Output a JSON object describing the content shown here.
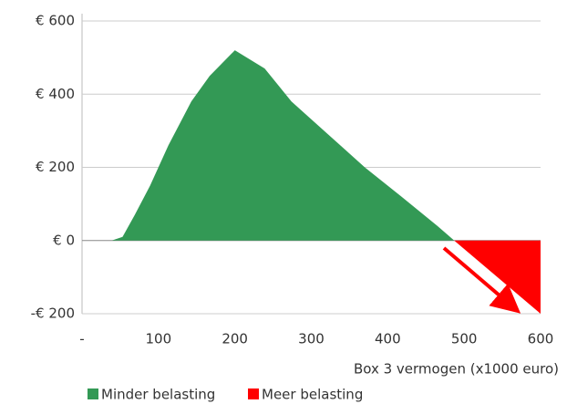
{
  "chart_data": {
    "type": "area",
    "xlabel": "Box 3 vermogen (x1000 euro)",
    "series": [
      {
        "name": "Minder belasting",
        "color": "#339955",
        "x": [
          39,
          53,
          69,
          89,
          113,
          143,
          167,
          200,
          239,
          274,
          322,
          370,
          418,
          465,
          487
        ],
        "values": [
          0,
          10,
          70,
          150,
          260,
          380,
          450,
          520,
          470,
          380,
          290,
          200,
          120,
          40,
          0
        ]
      },
      {
        "name": "Meer belasting",
        "color": "#ff0000",
        "x": [
          487,
          600
        ],
        "values": [
          0,
          -200
        ]
      }
    ],
    "xlim": [
      0,
      600
    ],
    "xticks": [
      {
        "value": 0,
        "label": "-"
      },
      100,
      200,
      300,
      400,
      500,
      600
    ],
    "ylim": [
      -200,
      600
    ],
    "yticks": [
      {
        "value": 600,
        "label": "€ 600"
      },
      {
        "value": 400,
        "label": "€ 400"
      },
      {
        "value": 200,
        "label": "€ 200"
      },
      {
        "value": 0,
        "label": "€ 0"
      },
      {
        "value": -200,
        "label": "-€ 200"
      }
    ],
    "grid": true,
    "legend": "bottom"
  }
}
